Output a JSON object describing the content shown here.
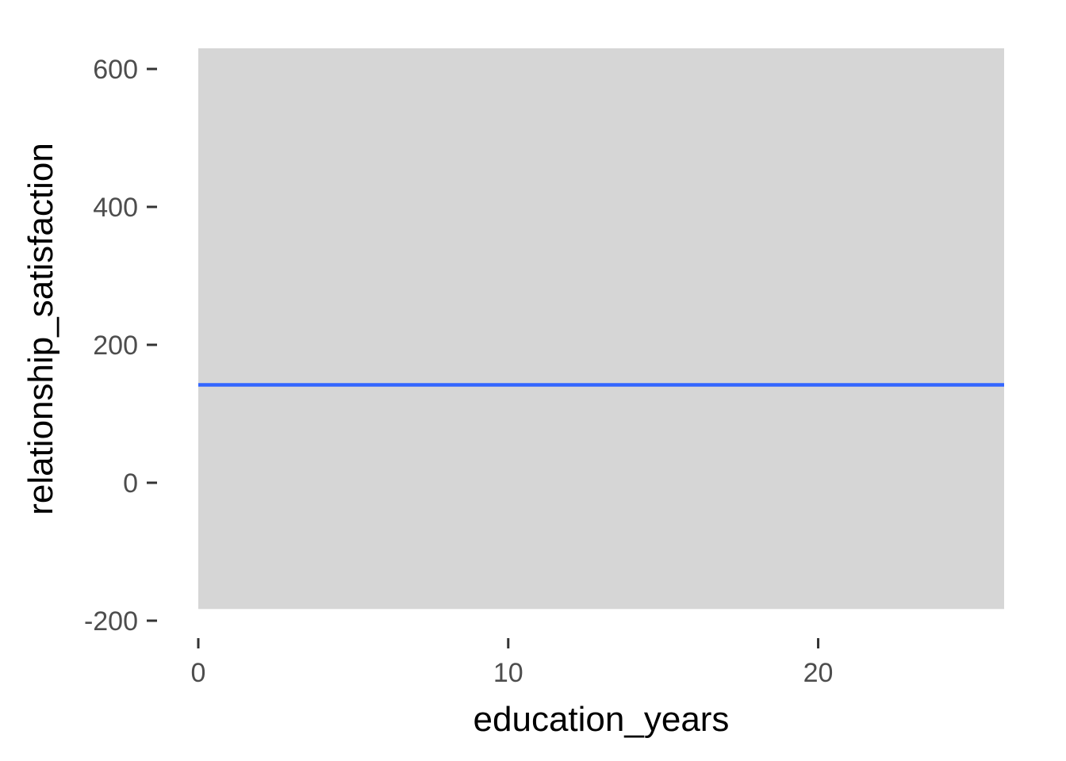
{
  "chart_data": {
    "type": "line",
    "title": "",
    "xlabel": "education_years",
    "ylabel": "relationship_satisfaction",
    "xlim": [
      0,
      26
    ],
    "ylim": [
      -200,
      600
    ],
    "x_ticks": [
      0,
      10,
      20
    ],
    "x_tick_labels": [
      "0",
      "10",
      "20"
    ],
    "y_ticks": [
      -200,
      0,
      200,
      400,
      600
    ],
    "y_tick_labels": [
      "-200",
      "0",
      "200",
      "400",
      "600"
    ],
    "ribbon": {
      "x": [
        0,
        26
      ],
      "lower": [
        -183,
        -183
      ],
      "upper": [
        630,
        630
      ]
    },
    "series": [
      {
        "x": [
          0,
          26
        ],
        "y": [
          142,
          142
        ]
      }
    ],
    "grid": false,
    "colors": {
      "line": "#3366ff",
      "ribbon": "#d6d6d6",
      "tick": "#333333"
    }
  }
}
